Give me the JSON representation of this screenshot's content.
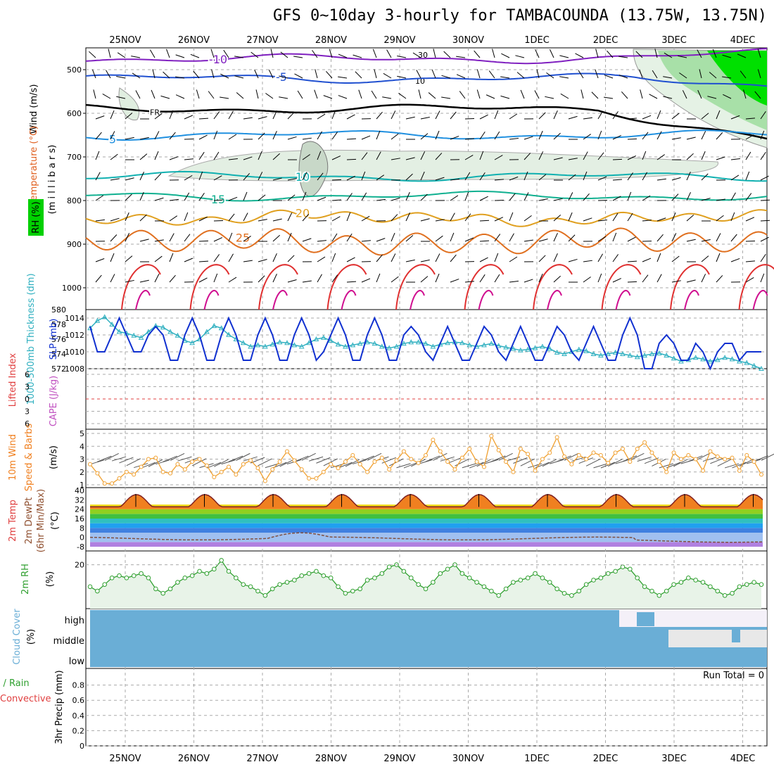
{
  "title": "GFS 0~10day 3-hourly for TAMBACOUNDA (13.75W, 13.75N)",
  "chart_data": {
    "type": "meteogram",
    "dates": [
      "25NOV",
      "26NOV",
      "27NOV",
      "28NOV",
      "29NOV",
      "30NOV",
      "1DEC",
      "2DEC",
      "3DEC",
      "4DEC"
    ],
    "panels": [
      {
        "id": "upper-air",
        "ylabels": [
          {
            "text": "Wind (m/s)",
            "color": "#000000"
          },
          {
            "text": "Temperature (°C)",
            "color": "#e06020"
          },
          {
            "text": "RH (%)",
            "color": "#000000"
          }
        ],
        "ylabel_inner": "(m i l l i b a r s)",
        "yticks": [
          "500",
          "600",
          "700",
          "800",
          "900",
          "1000"
        ],
        "ylim": [
          1050,
          450
        ],
        "isotherms": [
          {
            "label": "-10",
            "pressure": 475,
            "color": "#8020c0"
          },
          {
            "label": "-5",
            "pressure": 520,
            "color": "#2050d0"
          },
          {
            "label": "FR",
            "pressure": 590,
            "color": "#000000"
          },
          {
            "label": "5",
            "pressure": 650,
            "color": "#2090e0"
          },
          {
            "label": "10",
            "pressure": 745,
            "color": "#10b0b0"
          },
          {
            "label": "15",
            "pressure": 790,
            "color": "#10b090"
          },
          {
            "label": "20",
            "pressure": 840,
            "color": "#e0a020"
          },
          {
            "label": "25",
            "pressure": 895,
            "color": "#e07020"
          }
        ],
        "rh_labels": [
          "30",
          "10"
        ]
      },
      {
        "id": "thickness-slp",
        "ylabel_left": "1000-500mb Thickness (dm)",
        "ylabel_right": "SLP (mb)",
        "thickness_ticks": [
          "572",
          "574",
          "576",
          "578",
          "580"
        ],
        "slp_ticks": [
          "1008",
          "1010",
          "1012",
          "1014"
        ],
        "slp": [
          1013,
          1010,
          1010,
          1012,
          1014,
          1012,
          1010,
          1010,
          1012,
          1013,
          1012,
          1009,
          1009,
          1012,
          1014,
          1012,
          1009,
          1009,
          1012,
          1014,
          1012,
          1009,
          1009,
          1012,
          1014,
          1012,
          1009,
          1009,
          1012,
          1014,
          1012,
          1009,
          1010,
          1012,
          1014,
          1012,
          1009,
          1009,
          1012,
          1014,
          1012,
          1009,
          1009,
          1012,
          1013,
          1012,
          1010,
          1009,
          1011,
          1013,
          1011,
          1009,
          1009,
          1011,
          1013,
          1012,
          1010,
          1009,
          1011,
          1013,
          1011,
          1009,
          1009,
          1011,
          1013,
          1012,
          1010,
          1009,
          1011,
          1013,
          1011,
          1009,
          1009,
          1012,
          1014,
          1012,
          1008,
          1008,
          1011,
          1012,
          1011,
          1009,
          1009,
          1011,
          1010,
          1008,
          1010,
          1011,
          1011,
          1009,
          1010,
          1010,
          1010
        ],
        "thickness": [
          577.5,
          578.5,
          579.0,
          578.0,
          577.0,
          576.8,
          576.5,
          576.2,
          577.0,
          577.8,
          577.6,
          577.0,
          576.5,
          575.8,
          575.5,
          576.0,
          577.0,
          577.8,
          577.5,
          576.6,
          576.0,
          575.5,
          575.0,
          575.2,
          575.0,
          575.3,
          575.6,
          575.5,
          575.2,
          575.0,
          575.5,
          576.0,
          576.2,
          575.8,
          575.3,
          575.0,
          575.2,
          575.4,
          575.6,
          575.4,
          575.0,
          574.8,
          575.0,
          575.4,
          575.6,
          575.6,
          575.4,
          575.0,
          575.3,
          575.5,
          575.6,
          575.5,
          575.2,
          575.0,
          575.2,
          575.4,
          575.1,
          574.9,
          574.7,
          574.5,
          574.6,
          574.8,
          575.0,
          574.7,
          574.2,
          574.0,
          574.3,
          574.6,
          574.4,
          574.0,
          573.8,
          574.0,
          574.2,
          574.0,
          573.8,
          573.6,
          573.8,
          574.0,
          574.1,
          573.8,
          573.4,
          573.0,
          573.2,
          573.5,
          573.3,
          573.0,
          573.2,
          573.5,
          573.3,
          573.0,
          572.8,
          572.4,
          572.0
        ]
      },
      {
        "id": "lifted-cape",
        "ylabel_left": "Lifted Index",
        "ylabel_right": "CAPE (J/kg)",
        "yticks": [
          "6",
          "3",
          "0",
          "3",
          "6"
        ]
      },
      {
        "id": "wind10m",
        "ylabel_left": "10m Wind",
        "ylabel_mid": "Speed & Barbs",
        "unit": "(m/s)",
        "yticks": [
          "1",
          "2",
          "3",
          "4",
          "5"
        ],
        "ylim": [
          1,
          5
        ],
        "speed": [
          2.6,
          1.9,
          1.1,
          1.1,
          1.5,
          2.0,
          1.8,
          2.4,
          3.0,
          3.1,
          2.0,
          1.9,
          2.6,
          2.2,
          2.8,
          3.0,
          2.5,
          1.6,
          2.0,
          2.4,
          1.8,
          2.6,
          2.9,
          2.3,
          1.3,
          2.2,
          2.8,
          3.6,
          2.9,
          2.2,
          1.5,
          1.5,
          2.0,
          2.6,
          2.3,
          2.8,
          3.3,
          2.6,
          2.0,
          2.8,
          3.1,
          2.2,
          2.9,
          3.6,
          3.0,
          2.7,
          3.3,
          4.5,
          3.6,
          2.8,
          2.2,
          3.1,
          3.8,
          2.8,
          2.4,
          4.8,
          3.7,
          2.8,
          2.0,
          3.8,
          3.4,
          2.1,
          3.0,
          3.5,
          4.7,
          3.2,
          2.6,
          3.3,
          3.0,
          3.5,
          3.3,
          2.7,
          3.5,
          3.8,
          2.8,
          3.8,
          4.3,
          3.5,
          2.8,
          2.0,
          3.5,
          3.0,
          3.3,
          3.0,
          2.1,
          3.6,
          3.2,
          3.0,
          3.1,
          2.1,
          3.3,
          2.8,
          1.8
        ]
      },
      {
        "id": "temp2m",
        "ylabel_left": "2m Temp",
        "ylabel_mid": "2m DewPt",
        "ylabel_right": "(6hr Min/Max)",
        "unit": "(°C)",
        "yticks": [
          "-8",
          "0",
          "8",
          "16",
          "24",
          "32",
          "40"
        ],
        "ylim": [
          -8,
          40
        ],
        "temp": [
          27.5,
          26.0,
          25.5,
          28.0,
          33.5,
          36.5,
          33.0,
          29.0
        ],
        "dewpt": [
          -1.0,
          -2.0,
          -3.0,
          -2.5,
          -1.0,
          0.0,
          -1.0,
          -2.0
        ]
      },
      {
        "id": "rh2m",
        "ylabel": "2m RH",
        "unit": "(%)",
        "yticks": [
          "20"
        ],
        "ylim": [
          0,
          25
        ],
        "rh": [
          10,
          8,
          11,
          14,
          15,
          14,
          15,
          16,
          14,
          9,
          7,
          9,
          12,
          14,
          15,
          17,
          16,
          18,
          22,
          17,
          14,
          11,
          10,
          8,
          6,
          9,
          11,
          12,
          13,
          15,
          16,
          17,
          15,
          14,
          10,
          7,
          8,
          9,
          13,
          14,
          16,
          19,
          20,
          17,
          14,
          11,
          9,
          12,
          16,
          18,
          20,
          16,
          14,
          12,
          10,
          8,
          6,
          9,
          12,
          13,
          14,
          16,
          14,
          12,
          9,
          7,
          6,
          8,
          11,
          13,
          14,
          16,
          17,
          19,
          18,
          14,
          10,
          8,
          6,
          8,
          11,
          12,
          14,
          13,
          12,
          10,
          8,
          6,
          7,
          10,
          11,
          12,
          11
        ]
      },
      {
        "id": "cloud",
        "ylabel": "Cloud Cover",
        "unit": "(%)",
        "levels": [
          "high",
          "middle",
          "low"
        ]
      },
      {
        "id": "precip",
        "ylabel_left": "Total / Rain",
        "ylabel_left2": "Convective",
        "ylabel_right": "3hr Precip (mm)",
        "yticks": [
          "0",
          "0.2",
          "0.4",
          "0.6",
          "0.8"
        ],
        "ylim": [
          0,
          1
        ],
        "run_total": "Run Total = 0"
      }
    ]
  }
}
